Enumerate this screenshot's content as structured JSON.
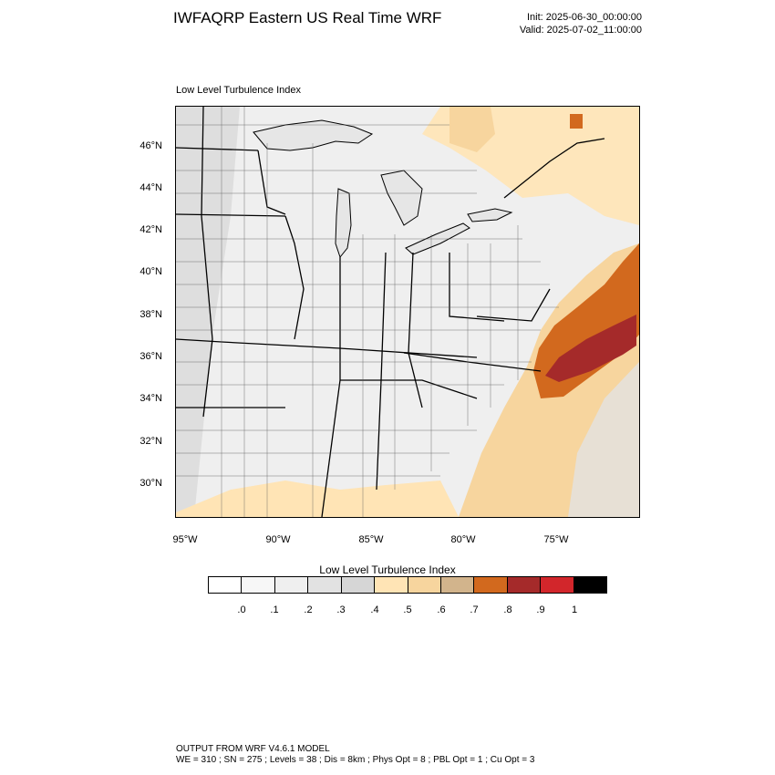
{
  "header": {
    "title": "IWFAQRP Eastern US Real Time WRF",
    "init": "Init: 2025-06-30_00:00:00",
    "valid": "Valid: 2025-07-02_11:00:00"
  },
  "panel": {
    "title": "Low Level Turbulence Index"
  },
  "axes": {
    "lat_ticks": [
      "46°N",
      "44°N",
      "42°N",
      "40°N",
      "38°N",
      "36°N",
      "34°N",
      "32°N",
      "30°N"
    ],
    "lon_ticks": [
      "95°W",
      "90°W",
      "85°W",
      "80°W",
      "75°W"
    ]
  },
  "colorbar": {
    "title": "Low Level Turbulence Index",
    "labels": [
      ".0",
      ".1",
      ".2",
      ".3",
      ".4",
      ".5",
      ".6",
      ".7",
      ".8",
      ".9",
      "1"
    ],
    "colors": [
      "#ffffff",
      "#f7f7f7",
      "#efefef",
      "#e2e2e2",
      "#d6d6d6",
      "#ffe4b5",
      "#f7d59e",
      "#d2b48c",
      "#d2691e",
      "#a52a2a",
      "#d2262b",
      "#000000"
    ]
  },
  "footer": {
    "line1": "OUTPUT FROM WRF V4.6.1 MODEL",
    "line2": "WE = 310 ; SN = 275 ; Levels = 38 ; Dis = 8km ; Phys Opt = 8 ; PBL Opt = 1 ; Cu Opt = 3"
  }
}
